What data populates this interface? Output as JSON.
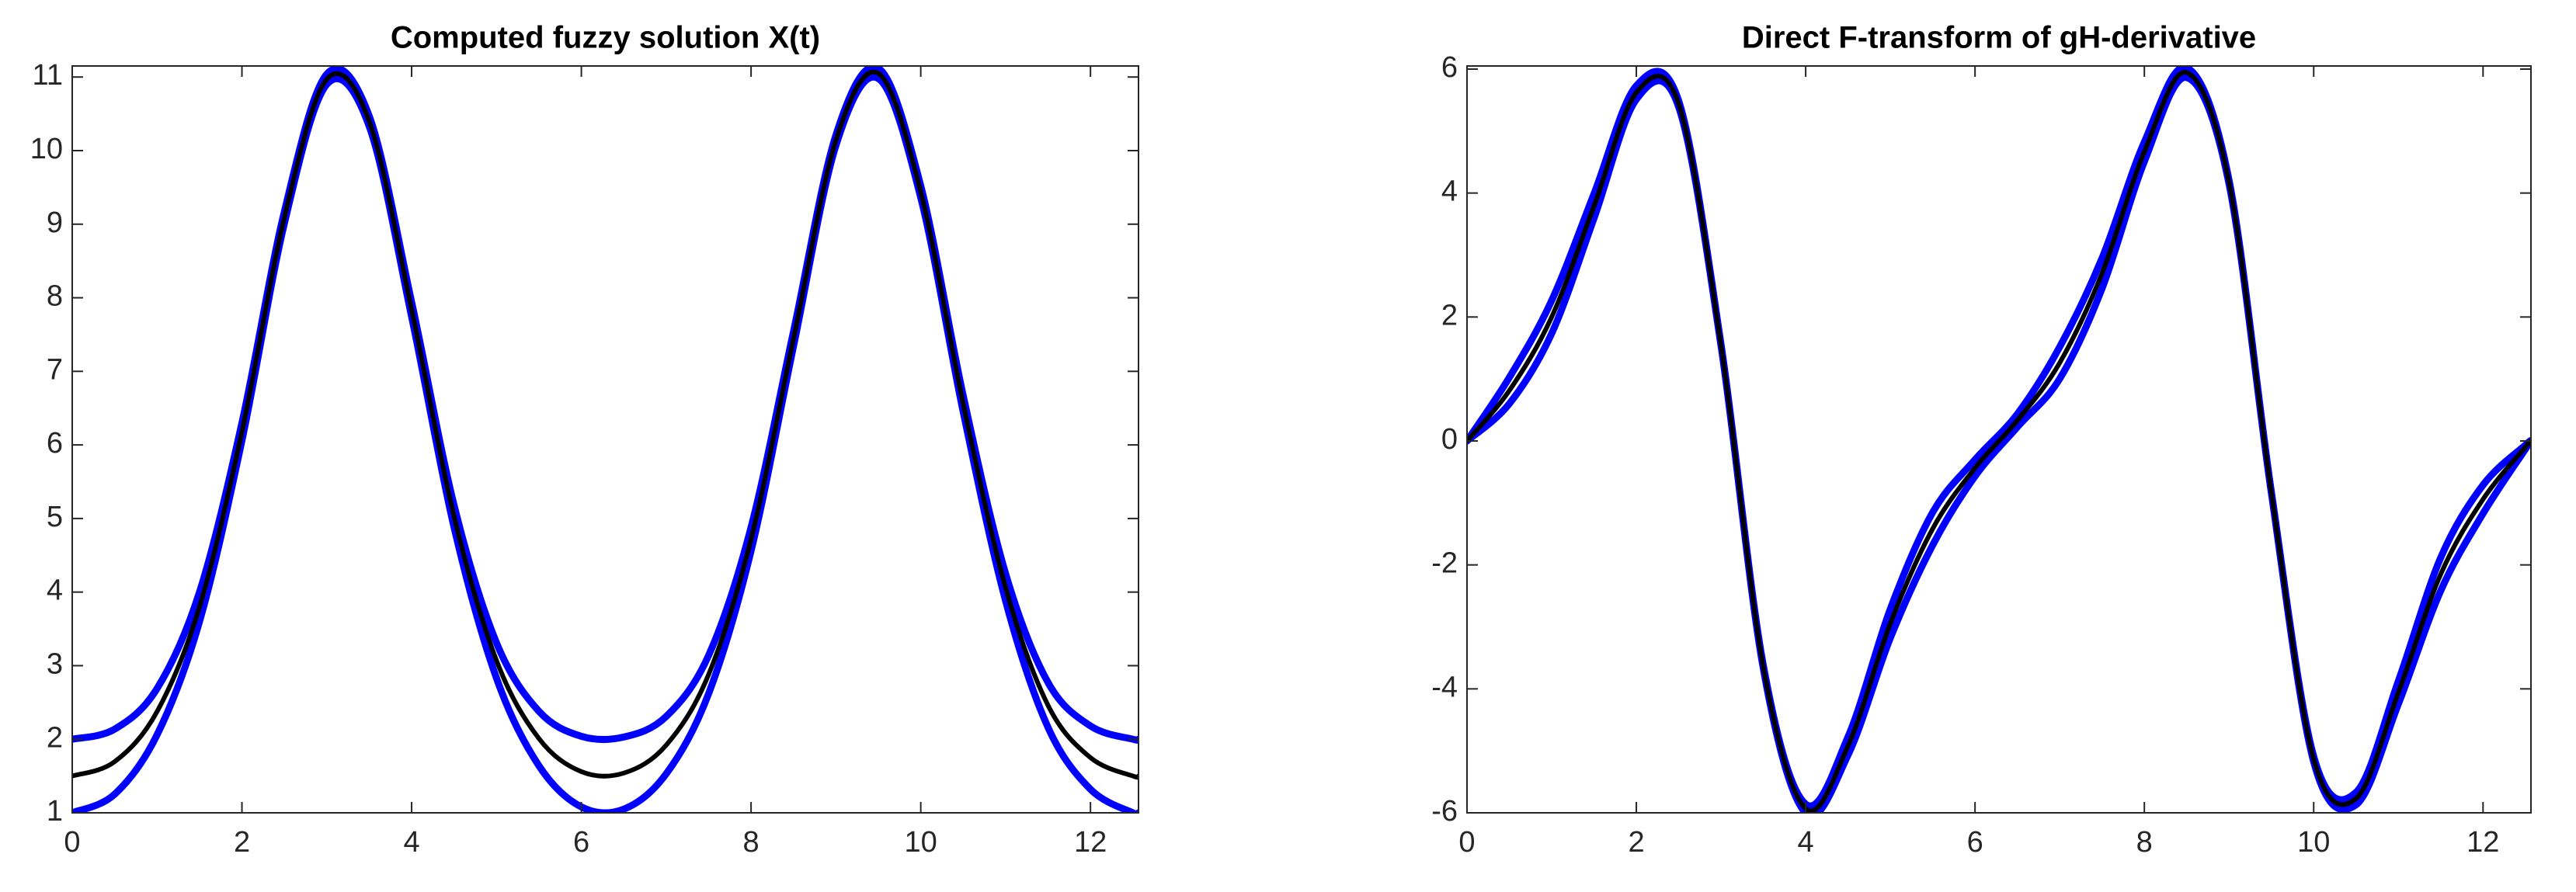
{
  "chart_data": [
    {
      "type": "line",
      "title": "Computed fuzzy solution X(t)",
      "x": [
        0,
        0.5,
        1,
        1.5,
        2,
        2.5,
        3,
        3.5,
        4,
        4.5,
        5,
        5.5,
        6,
        6.5,
        7,
        7.5,
        8,
        8.5,
        9,
        9.5,
        10,
        10.5,
        11,
        11.5,
        12,
        12.5,
        12.566
      ],
      "xlim": [
        0,
        12.566
      ],
      "xticks": [
        0,
        2,
        4,
        6,
        8,
        10,
        12
      ],
      "ylim": [
        1,
        11.15
      ],
      "yticks": [
        1,
        2,
        3,
        4,
        5,
        6,
        7,
        8,
        9,
        10,
        11
      ],
      "series": [
        {
          "color": "#0000ff",
          "values": [
            1.0,
            1.253,
            2.06,
            3.6,
            6.06,
            9.01,
            10.9,
            10.33,
            7.74,
            4.88,
            2.83,
            1.64,
            1.08,
            1.05,
            1.53,
            2.62,
            4.56,
            7.34,
            10.07,
            10.98,
            9.36,
            6.45,
            3.88,
            2.16,
            1.32,
            1.0,
            1.0
          ]
        },
        {
          "color": "#0000ff",
          "values": [
            2.0,
            2.137,
            2.69,
            4.0,
            6.3,
            9.17,
            11.04,
            10.47,
            7.94,
            5.18,
            3.31,
            2.38,
            2.04,
            2.03,
            2.31,
            3.14,
            4.88,
            7.54,
            10.21,
            11.12,
            9.52,
            6.67,
            4.25,
            2.77,
            2.18,
            2.0,
            2.0
          ]
        },
        {
          "color": "#000000",
          "values": [
            1.5,
            1.695,
            2.376,
            3.8,
            6.18,
            9.09,
            10.97,
            10.4,
            7.84,
            5.03,
            3.07,
            2.01,
            1.56,
            1.54,
            1.92,
            2.88,
            4.72,
            7.44,
            10.14,
            11.05,
            9.44,
            6.56,
            4.06,
            2.46,
            1.75,
            1.5,
            1.5
          ]
        }
      ]
    },
    {
      "type": "line",
      "title": "Direct F-transform of gH-derivative",
      "x": [
        0,
        0.5,
        1,
        1.5,
        2,
        2.5,
        3,
        3.5,
        4,
        4.5,
        5,
        5.5,
        6,
        6.5,
        7,
        7.5,
        8,
        8.5,
        9,
        9.5,
        10,
        10.5,
        11,
        11.5,
        12,
        12.5,
        12.566
      ],
      "xlim": [
        0,
        12.566
      ],
      "xticks": [
        0,
        2,
        4,
        6,
        8,
        10,
        12
      ],
      "ylim": [
        -6,
        6.05
      ],
      "yticks": [
        -6,
        -4,
        -2,
        0,
        2,
        4,
        6
      ],
      "series": [
        {
          "color": "#0000ff",
          "values": [
            0,
            0.601,
            1.734,
            3.593,
            5.511,
            5.389,
            1.538,
            -3.674,
            -6.004,
            -5.067,
            -3.178,
            -1.68,
            -0.57,
            0.225,
            1.003,
            2.46,
            4.509,
            5.864,
            4.149,
            -0.836,
            -5.176,
            -5.871,
            -4.244,
            -2.418,
            -1.171,
            -0.133,
            0
          ]
        },
        {
          "color": "#0000ff",
          "values": [
            0,
            1.025,
            2.266,
            3.987,
            5.731,
            5.487,
            1.558,
            -3.624,
            -5.86,
            -4.775,
            -2.71,
            -1.152,
            -0.302,
            0.435,
            1.517,
            2.948,
            4.823,
            6.024,
            4.209,
            -0.826,
            -5.09,
            -5.669,
            -3.874,
            -1.884,
            -0.711,
            -0.067,
            0
          ]
        },
        {
          "color": "#000000",
          "values": [
            0,
            0.813,
            2.0,
            3.79,
            5.621,
            5.438,
            1.548,
            -3.649,
            -5.932,
            -4.921,
            -2.944,
            -1.416,
            -0.436,
            0.33,
            1.26,
            2.704,
            4.666,
            5.944,
            4.179,
            -0.831,
            -5.133,
            -5.77,
            -4.059,
            -2.151,
            -0.941,
            -0.1,
            0
          ]
        }
      ]
    }
  ]
}
